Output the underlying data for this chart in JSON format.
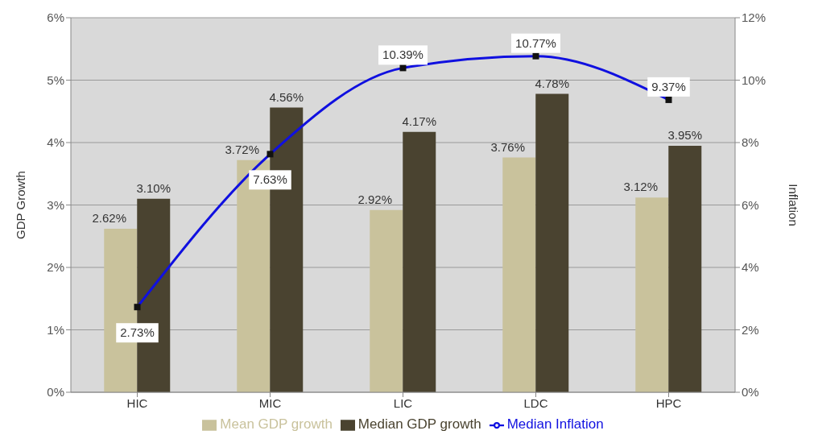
{
  "chart_data": {
    "type": "bar",
    "ylabel": "GDP Growth",
    "y2label": "Inflation",
    "categories": [
      "HIC",
      "MIC",
      "LIC",
      "LDC",
      "HPC"
    ],
    "series": [
      {
        "name": "Mean GDP growth",
        "color": "#c9c29c",
        "values": [
          2.62,
          3.72,
          2.92,
          3.76,
          3.12
        ],
        "value_labels": [
          "2.62%",
          "3.72%",
          "2.92%",
          "3.76%",
          "3.12%"
        ]
      },
      {
        "name": "Median GDP growth",
        "color": "#4a4330",
        "values": [
          3.1,
          4.56,
          4.17,
          4.78,
          3.95
        ],
        "value_labels": [
          "3.10%",
          "4.56%",
          "4.17%",
          "4.78%",
          "3.95%"
        ]
      },
      {
        "name": "Median Inflation",
        "type": "line",
        "axis": "y2",
        "color": "#1010e0",
        "marker": "square",
        "values": [
          2.73,
          7.63,
          10.39,
          10.77,
          9.37
        ],
        "value_labels": [
          "2.73%",
          "7.63%",
          "10.39%",
          "10.77%",
          "9.37%"
        ]
      }
    ],
    "ylim": [
      0,
      6
    ],
    "yticks": [
      {
        "value": 0,
        "label": "0%"
      },
      {
        "value": 1,
        "label": "1%"
      },
      {
        "value": 2,
        "label": "2%"
      },
      {
        "value": 3,
        "label": "3%"
      },
      {
        "value": 4,
        "label": "4%"
      },
      {
        "value": 5,
        "label": "5%"
      },
      {
        "value": 6,
        "label": "6%"
      }
    ],
    "y2lim": [
      0,
      12
    ],
    "y2ticks": [
      {
        "value": 0,
        "label": "0%"
      },
      {
        "value": 2,
        "label": "2%"
      },
      {
        "value": 4,
        "label": "4%"
      },
      {
        "value": 6,
        "label": "6%"
      },
      {
        "value": 8,
        "label": "8%"
      },
      {
        "value": 10,
        "label": "10%"
      },
      {
        "value": 12,
        "label": "12%"
      }
    ],
    "grid": "y",
    "legend": "bottom"
  }
}
